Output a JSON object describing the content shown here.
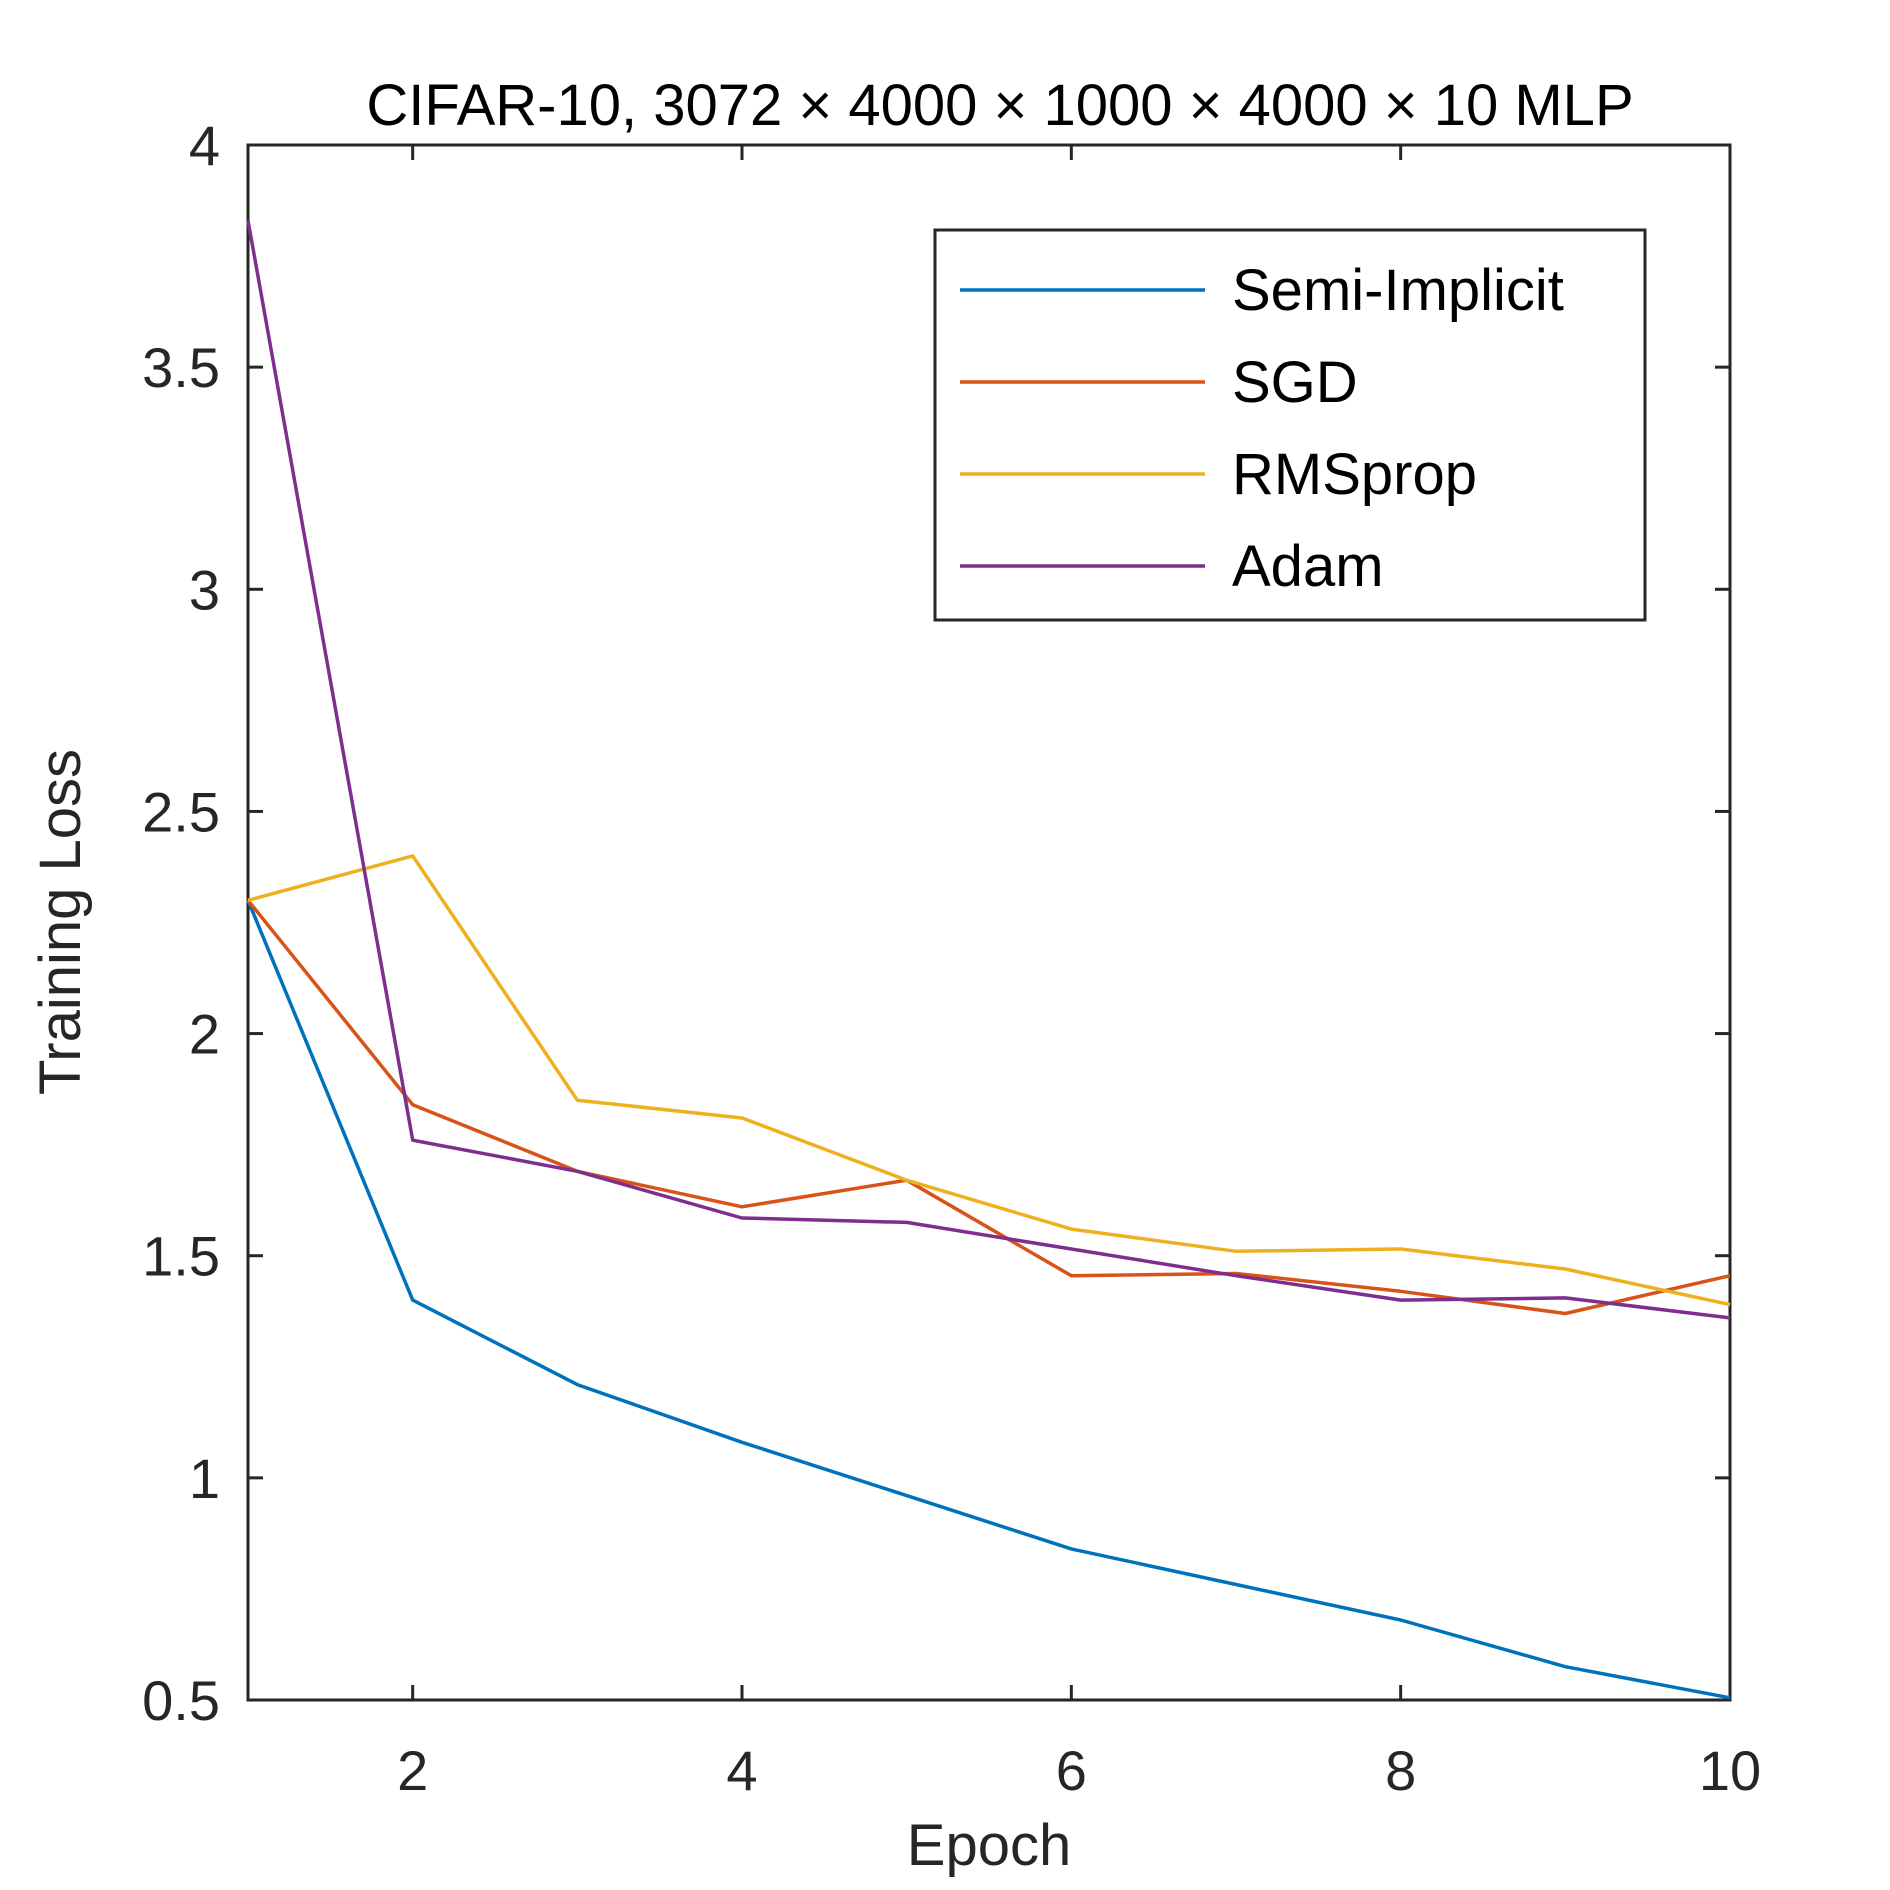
{
  "chart_data": {
    "type": "line",
    "title": "CIFAR-10, 3072 × 4000 × 1000 × 4000 × 10 MLP",
    "xlabel": "Epoch",
    "ylabel": "Training Loss",
    "xlim": [
      1,
      10
    ],
    "ylim": [
      0.5,
      4
    ],
    "xticks": [
      2,
      4,
      6,
      8,
      10
    ],
    "xtick_labels": [
      "2",
      "4",
      "6",
      "8",
      "10"
    ],
    "yticks": [
      0.5,
      1,
      1.5,
      2,
      2.5,
      3,
      3.5,
      4
    ],
    "ytick_labels": [
      "0.5",
      "1",
      "1.5",
      "2",
      "2.5",
      "3",
      "3.5",
      "4"
    ],
    "grid": false,
    "legend_position": "top-right",
    "x": [
      1,
      2,
      3,
      4,
      5,
      6,
      7,
      8,
      9,
      10
    ],
    "series": [
      {
        "name": "Semi-Implicit",
        "color": "#0072BD",
        "values": [
          2.3,
          1.4,
          1.21,
          1.08,
          0.96,
          0.84,
          0.76,
          0.68,
          0.575,
          0.505
        ]
      },
      {
        "name": "SGD",
        "color": "#D95319",
        "values": [
          2.3,
          1.84,
          1.69,
          1.61,
          1.67,
          1.455,
          1.46,
          1.42,
          1.37,
          1.455
        ]
      },
      {
        "name": "RMSprop",
        "color": "#EDB120",
        "values": [
          2.3,
          2.4,
          1.85,
          1.81,
          1.67,
          1.56,
          1.51,
          1.515,
          1.47,
          1.39
        ]
      },
      {
        "name": "Adam",
        "color": "#7E2F8E",
        "values": [
          3.83,
          1.76,
          1.69,
          1.585,
          1.575,
          1.515,
          1.455,
          1.4,
          1.405,
          1.36
        ]
      }
    ]
  }
}
